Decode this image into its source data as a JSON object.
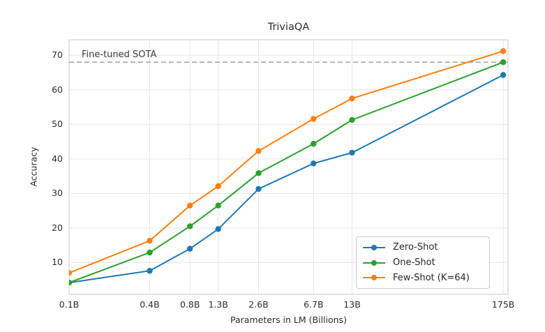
{
  "chart_data": {
    "type": "line",
    "title": "TriviaQA",
    "xlabel": "Parameters in LM (Billions)",
    "ylabel": "Accuracy",
    "x_scale": "log",
    "x": [
      0.1,
      0.4,
      0.8,
      1.3,
      2.6,
      6.7,
      13,
      175
    ],
    "x_tick_labels": [
      "0.1B",
      "0.4B",
      "0.8B",
      "1.3B",
      "2.6B",
      "6.7B",
      "13B",
      "175B"
    ],
    "y_ticks": [
      10,
      20,
      30,
      40,
      50,
      60,
      70
    ],
    "ylim": [
      0.8,
      74.5
    ],
    "xlim": [
      0.1,
      190
    ],
    "grid": true,
    "legend_position": "lower right",
    "series": [
      {
        "name": "Zero-Shot",
        "color": "#1f77b4",
        "values": [
          4.2,
          7.6,
          14.0,
          19.7,
          31.3,
          38.7,
          41.8,
          64.3
        ]
      },
      {
        "name": "One-Shot",
        "color": "#2ca02c",
        "values": [
          4.2,
          12.9,
          20.5,
          26.5,
          35.9,
          44.4,
          51.3,
          68.0
        ]
      },
      {
        "name": "Few-Shot (K=64)",
        "color": "#ff7f0e",
        "values": [
          7.0,
          16.3,
          26.5,
          32.1,
          42.3,
          51.6,
          57.5,
          71.2
        ]
      }
    ],
    "reference_line": {
      "label": "Fine-tuned SOTA",
      "value": 68.0,
      "style": "dashed",
      "color": "#999999"
    }
  },
  "style_colors": {
    "grid": "#e5e5e5",
    "spine": "#c9c9c9",
    "text": "#2b2b2b",
    "background": "#ffffff"
  }
}
